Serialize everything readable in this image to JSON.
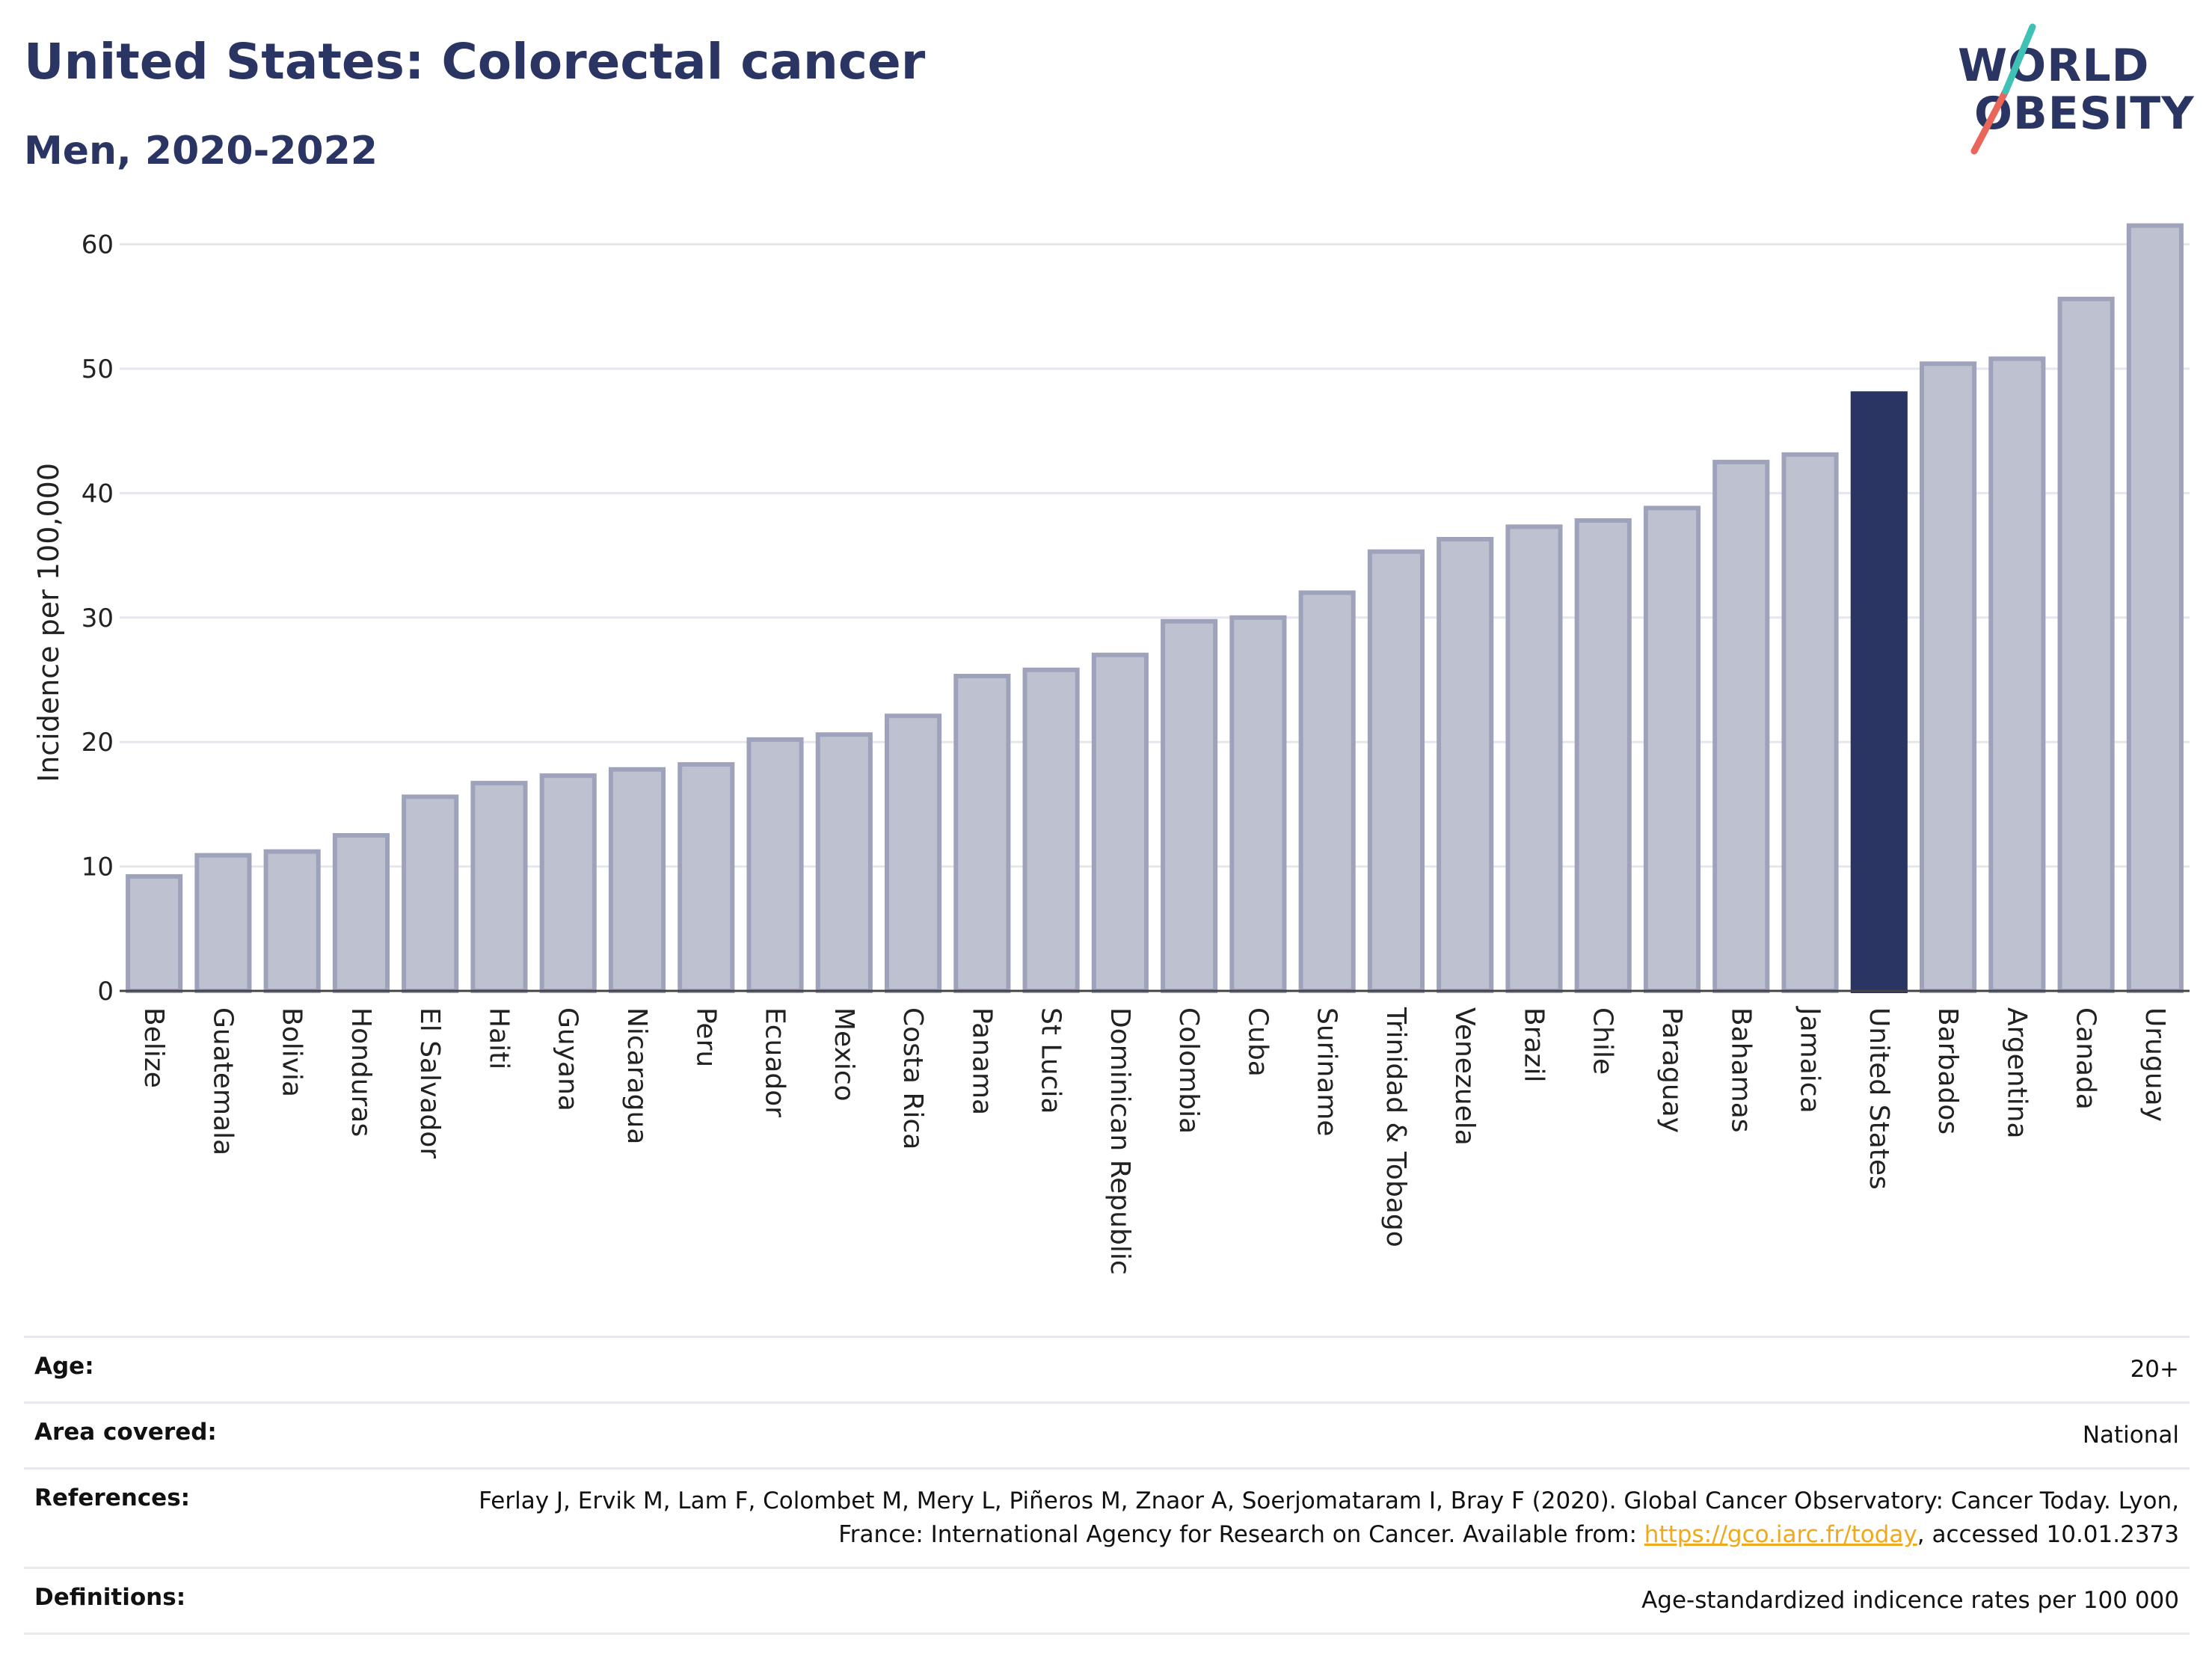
{
  "header": {
    "title": "United States: Colorectal cancer",
    "subtitle": "Men, 2020-2022"
  },
  "logo": {
    "line1": "WORLD",
    "line2": "OBESITY",
    "colors": {
      "text": "#2a3563",
      "slash_red": "#e8675a",
      "slash_teal": "#3fc1b6"
    }
  },
  "chart_data": {
    "type": "bar",
    "ylabel": "Incidence per 100,000",
    "xlabel": "",
    "ylim": [
      0,
      64
    ],
    "yticks": [
      0,
      10,
      20,
      30,
      40,
      50,
      60
    ],
    "grid": true,
    "categories": [
      "Belize",
      "Guatemala",
      "Bolivia",
      "Honduras",
      "El Salvador",
      "Haiti",
      "Guyana",
      "Nicaragua",
      "Peru",
      "Ecuador",
      "Mexico",
      "Costa Rica",
      "Panama",
      "St Lucia",
      "Dominican Republic",
      "Colombia",
      "Cuba",
      "Suriname",
      "Trinidad & Tobago",
      "Venezuela",
      "Brazil",
      "Chile",
      "Paraguay",
      "Bahamas",
      "Jamaica",
      "United States",
      "Barbados",
      "Argentina",
      "Canada",
      "Uruguay"
    ],
    "values": [
      9.2,
      10.9,
      11.2,
      12.5,
      15.6,
      16.7,
      17.3,
      17.8,
      18.2,
      20.2,
      20.6,
      22.1,
      25.3,
      25.8,
      27.0,
      29.7,
      30.0,
      32.0,
      35.3,
      36.3,
      37.3,
      37.8,
      38.8,
      42.5,
      43.1,
      48.0,
      50.4,
      50.8,
      55.6,
      61.5
    ],
    "highlight": "United States",
    "colors": {
      "bar": "#bec2d0",
      "bar_stroke": "#9ea3bb",
      "highlight": "#2a3563",
      "grid": "#e6e6ee"
    }
  },
  "details": {
    "age_label": "Age:",
    "age_value": "20+",
    "area_label": "Area covered:",
    "area_value": "National",
    "references_label": "References:",
    "references_text": "Ferlay J, Ervik M, Lam F, Colombet M, Mery L, Piñeros M, Znaor A, Soerjomataram I, Bray F (2020). Global Cancer Observatory: Cancer Today. Lyon, France: International Agency for Research on Cancer. Available from:",
    "references_link": "https://gco.iarc.fr/today",
    "references_suffix": ", accessed 10.01.2373",
    "definitions_label": "Definitions:",
    "definitions_value": "Age-standardized indicence rates per 100 000"
  }
}
